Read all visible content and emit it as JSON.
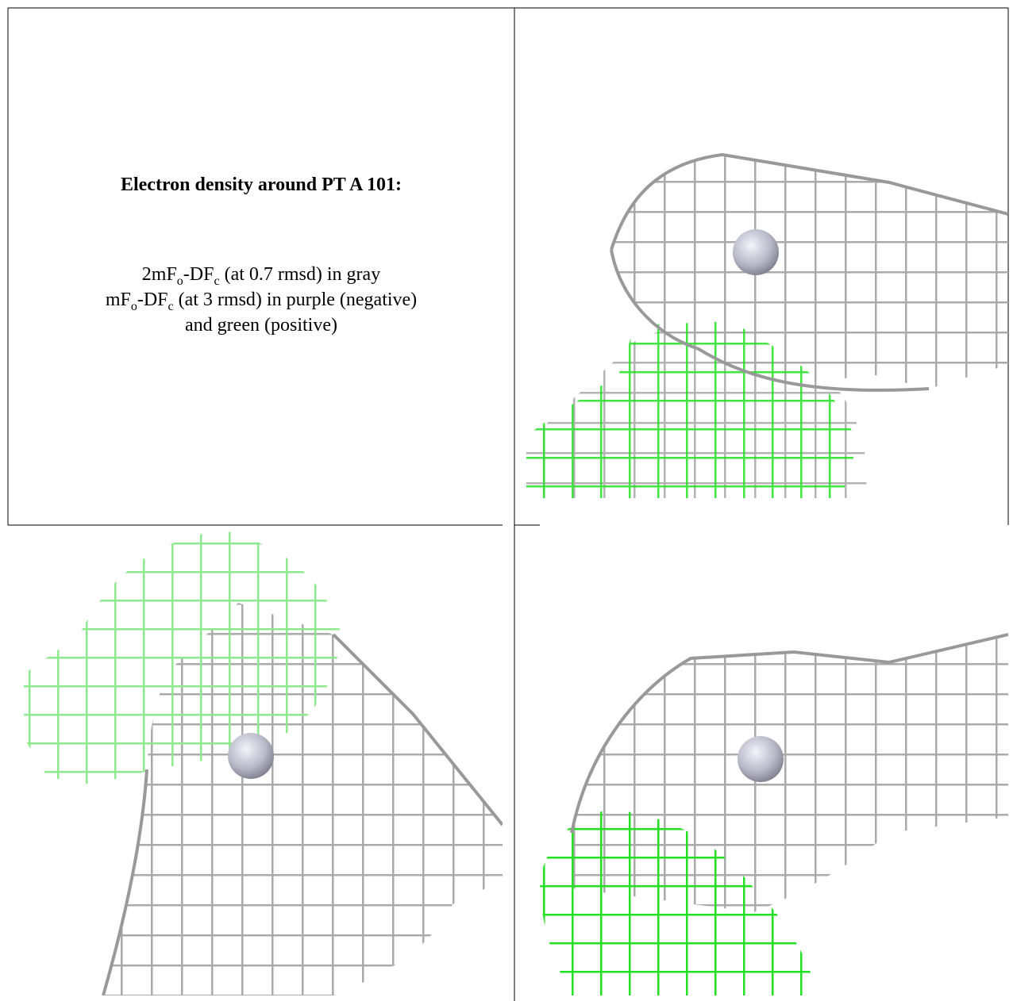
{
  "figure": {
    "title": "Electron density around PT A 101:",
    "lines": [
      [
        {
          "text": "2mF"
        },
        {
          "sub": "o"
        },
        {
          "text": "-DF"
        },
        {
          "sub": "c"
        },
        {
          "text": " (at 0.7 rmsd) in gray"
        }
      ],
      [
        {
          "text": "mF"
        },
        {
          "sub": "o"
        },
        {
          "text": "-DF"
        },
        {
          "sub": "c"
        },
        {
          "text": " (at 3 rmsd) in purple (negative)"
        }
      ],
      [
        {
          "text": "and green (positive)"
        }
      ]
    ]
  }
}
